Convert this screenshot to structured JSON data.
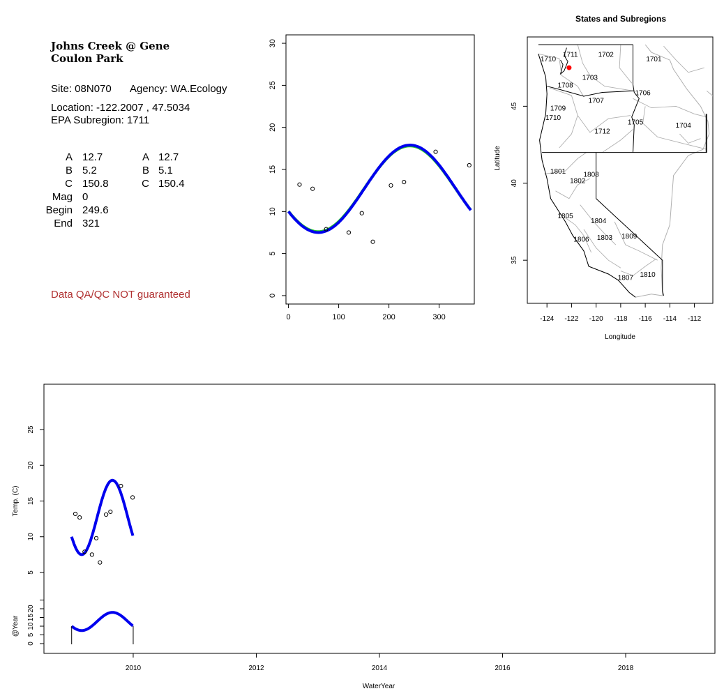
{
  "site_title": [
    "Johns Creek @ Gene",
    "Coulon Park"
  ],
  "site_line": "Site: 08N070",
  "agency_line": "Agency: WA.Ecology",
  "location_line": "Location: -122.2007 , 47.5034",
  "subregion_line": "EPA Subregion: 1711",
  "params": [
    {
      "label": "A",
      "v1": "12.7",
      "label2": "A",
      "v2": "12.7"
    },
    {
      "label": "B",
      "v1": "5.2",
      "label2": "B",
      "v2": "5.1"
    },
    {
      "label": "C",
      "v1": "150.8",
      "label2": "C",
      "v2": "150.4"
    },
    {
      "label": "Mag",
      "v1": "0",
      "label2": "",
      "v2": ""
    },
    {
      "label": "Begin",
      "v1": "249.6",
      "label2": "",
      "v2": ""
    },
    {
      "label": "End",
      "v1": "321",
      "label2": "",
      "v2": ""
    }
  ],
  "qa_note": "Data QA/QC NOT guaranteed",
  "colors": {
    "fit": "#0000ee",
    "fit_alt": "#22cc22",
    "qa": "#b03030",
    "site_dot": "#ff0000",
    "region_line": "#b0b0b0"
  },
  "chart_data": [
    {
      "type": "scatter",
      "id": "seasonal",
      "xlim": [
        -5,
        370
      ],
      "ylim": [
        -1,
        31
      ],
      "xticks": [
        0,
        100,
        200,
        300
      ],
      "yticks": [
        0,
        5,
        10,
        15,
        20,
        25,
        30
      ],
      "points": [
        [
          22,
          13.2
        ],
        [
          48,
          12.7
        ],
        [
          75,
          7.9
        ],
        [
          120,
          7.5
        ],
        [
          146,
          9.8
        ],
        [
          168,
          6.4
        ],
        [
          204,
          13.1
        ],
        [
          230,
          13.5
        ],
        [
          293,
          17.1
        ],
        [
          360,
          15.5
        ]
      ],
      "fit_A": 12.7,
      "fit_B": 5.2,
      "fit_C": 150.8,
      "fit2_A": 12.7,
      "fit2_B": 5.1,
      "fit2_C": 150.4,
      "fit_range": [
        0,
        365
      ]
    },
    {
      "type": "map",
      "id": "regions",
      "title": "States and Subregions",
      "xlabel": "Longitude",
      "ylabel": "Latitude",
      "xticks": [
        -124,
        -122,
        -120,
        -118,
        -116,
        -114,
        -112
      ],
      "yticks": [
        35,
        40,
        45
      ],
      "xlim": [
        -125.6,
        -110.5
      ],
      "ylim": [
        32.2,
        49.5
      ],
      "region_labels": [
        {
          "t": "1711",
          "lon": -122.1,
          "lat": 48.4
        },
        {
          "t": "1702",
          "lon": -119.2,
          "lat": 48.4
        },
        {
          "t": "1701",
          "lon": -115.3,
          "lat": 48.1
        },
        {
          "t": "1710",
          "lon": -123.9,
          "lat": 48.1
        },
        {
          "t": "1703",
          "lon": -120.5,
          "lat": 46.9
        },
        {
          "t": "1708",
          "lon": -122.5,
          "lat": 46.4
        },
        {
          "t": "1706",
          "lon": -116.2,
          "lat": 45.9
        },
        {
          "t": "1707",
          "lon": -120.0,
          "lat": 45.4
        },
        {
          "t": "1709",
          "lon": -123.1,
          "lat": 44.9
        },
        {
          "t": "1710",
          "lon": -123.5,
          "lat": 44.3
        },
        {
          "t": "1705",
          "lon": -116.8,
          "lat": 44.0
        },
        {
          "t": "1704",
          "lon": -112.9,
          "lat": 43.8
        },
        {
          "t": "1712",
          "lon": -119.5,
          "lat": 43.4
        },
        {
          "t": "1801",
          "lon": -123.1,
          "lat": 40.8
        },
        {
          "t": "1808",
          "lon": -120.4,
          "lat": 40.6
        },
        {
          "t": "1802",
          "lon": -121.5,
          "lat": 40.2
        },
        {
          "t": "1805",
          "lon": -122.5,
          "lat": 37.9
        },
        {
          "t": "1804",
          "lon": -119.8,
          "lat": 37.6
        },
        {
          "t": "1803",
          "lon": -119.3,
          "lat": 36.5
        },
        {
          "t": "1806",
          "lon": -121.2,
          "lat": 36.4
        },
        {
          "t": "1809",
          "lon": -117.3,
          "lat": 36.6
        },
        {
          "t": "1810",
          "lon": -115.8,
          "lat": 34.1
        },
        {
          "t": "1807",
          "lon": -117.6,
          "lat": 33.9
        }
      ],
      "site_point": {
        "lon": -122.2007,
        "lat": 47.5034
      }
    },
    {
      "type": "line",
      "id": "timeseries",
      "ylabel": "Temp. (C)",
      "xlabel": "WaterYear",
      "ylabel2": "@Year",
      "xlim": [
        2008.55,
        2019.45
      ],
      "xticks": [
        2010,
        2012,
        2014,
        2016,
        2018
      ],
      "yticks": [
        5,
        10,
        15,
        20,
        25
      ],
      "ylim": [
        0.5,
        31
      ],
      "yticks2": [
        0,
        5,
        10,
        15,
        20
      ],
      "y2lim": [
        0,
        24
      ],
      "points": [
        [
          2009.06,
          13.2
        ],
        [
          2009.13,
          12.7
        ],
        [
          2009.21,
          7.9
        ],
        [
          2009.33,
          7.5
        ],
        [
          2009.4,
          9.8
        ],
        [
          2009.46,
          6.4
        ],
        [
          2009.56,
          13.1
        ],
        [
          2009.63,
          13.5
        ],
        [
          2009.8,
          17.1
        ],
        [
          2009.99,
          15.5
        ]
      ],
      "fit_range": [
        2009.0,
        2010.0
      ]
    }
  ]
}
